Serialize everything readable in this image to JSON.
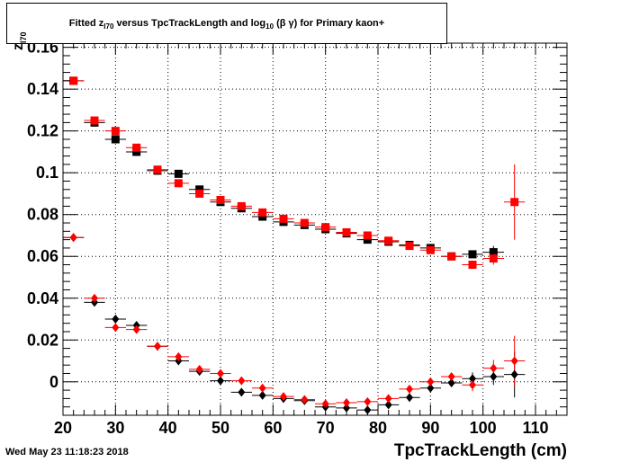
{
  "title": {
    "prefix": "Fitted  z",
    "prefix_sub": "I70",
    "middle": "  versus TpcTrackLength and log",
    "middle_sub": "10",
    "suffix": " (β γ) for Primary kaon+"
  },
  "footer": {
    "date": "Wed May 23 11:18:23 2018"
  },
  "chart_data": {
    "type": "scatter",
    "title": "Fitted z_I70 versus TpcTrackLength and log10 (β γ) for Primary kaon+",
    "xlabel": "TpcTrackLength (cm)",
    "ylabel": "z",
    "ylabel_sub": "I70",
    "xlim": [
      20,
      116
    ],
    "ylim": [
      -0.016,
      0.162
    ],
    "x_ticks": [
      20,
      30,
      40,
      50,
      60,
      70,
      80,
      90,
      100,
      110
    ],
    "y_ticks": [
      0,
      0.02,
      0.04,
      0.06,
      0.08,
      0.1,
      0.12,
      0.14,
      0.16
    ],
    "y_tick_labels": [
      "0",
      "0.02",
      "0.04",
      "0.06",
      "0.08",
      "0.1",
      "0.12",
      "0.14",
      "0.16"
    ],
    "grid": true,
    "x_half_width": 2,
    "series": [
      {
        "marker": "square",
        "color": "#000000",
        "z": 1,
        "points": [
          [
            22,
            0.144,
            0.0008
          ],
          [
            26,
            0.124,
            0.0008
          ],
          [
            30,
            0.116,
            0.0008
          ],
          [
            34,
            0.11,
            0.0008
          ],
          [
            38,
            0.101,
            0.0008
          ],
          [
            42,
            0.0995,
            0.0008
          ],
          [
            46,
            0.092,
            0.0008
          ],
          [
            50,
            0.086,
            0.0008
          ],
          [
            54,
            0.083,
            0.0008
          ],
          [
            58,
            0.079,
            0.0008
          ],
          [
            62,
            0.0765,
            0.0008
          ],
          [
            66,
            0.075,
            0.0008
          ],
          [
            70,
            0.073,
            0.0008
          ],
          [
            74,
            0.071,
            0.0008
          ],
          [
            78,
            0.068,
            0.0008
          ],
          [
            82,
            0.067,
            0.0008
          ],
          [
            86,
            0.0655,
            0.0008
          ],
          [
            90,
            0.064,
            0.001
          ],
          [
            94,
            0.06,
            0.001
          ],
          [
            98,
            0.061,
            0.0015
          ],
          [
            102,
            0.062,
            0.003
          ]
        ]
      },
      {
        "marker": "square",
        "color": "#ff0000",
        "z": 2,
        "points": [
          [
            22,
            0.144,
            0.0008
          ],
          [
            26,
            0.125,
            0.0008
          ],
          [
            30,
            0.12,
            0.0008
          ],
          [
            34,
            0.112,
            0.0008
          ],
          [
            38,
            0.1015,
            0.0008
          ],
          [
            42,
            0.095,
            0.0008
          ],
          [
            46,
            0.09,
            0.0008
          ],
          [
            50,
            0.087,
            0.0008
          ],
          [
            54,
            0.084,
            0.0008
          ],
          [
            58,
            0.081,
            0.0008
          ],
          [
            62,
            0.078,
            0.0008
          ],
          [
            66,
            0.076,
            0.0008
          ],
          [
            70,
            0.074,
            0.0008
          ],
          [
            74,
            0.0715,
            0.0008
          ],
          [
            78,
            0.07,
            0.0008
          ],
          [
            82,
            0.0675,
            0.0008
          ],
          [
            86,
            0.065,
            0.0008
          ],
          [
            90,
            0.063,
            0.0012
          ],
          [
            94,
            0.06,
            0.0012
          ],
          [
            98,
            0.056,
            0.002
          ],
          [
            102,
            0.059,
            0.003
          ],
          [
            106,
            0.086,
            0.018
          ]
        ]
      },
      {
        "marker": "diamond",
        "color": "#000000",
        "z": 1,
        "points": [
          [
            22,
            0.069,
            0.0008
          ],
          [
            26,
            0.038,
            0.0008
          ],
          [
            30,
            0.03,
            0.0008
          ],
          [
            34,
            0.027,
            0.0008
          ],
          [
            38,
            0.017,
            0.0008
          ],
          [
            42,
            0.01,
            0.0008
          ],
          [
            46,
            0.005,
            0.0008
          ],
          [
            50,
            0.0005,
            0.0008
          ],
          [
            54,
            -0.005,
            0.0008
          ],
          [
            58,
            -0.0065,
            0.0008
          ],
          [
            62,
            -0.008,
            0.0008
          ],
          [
            66,
            -0.009,
            0.0008
          ],
          [
            70,
            -0.012,
            0.0008
          ],
          [
            74,
            -0.0125,
            0.0008
          ],
          [
            78,
            -0.0135,
            0.0008
          ],
          [
            82,
            -0.011,
            0.0008
          ],
          [
            86,
            -0.0075,
            0.0008
          ],
          [
            90,
            -0.003,
            0.001
          ],
          [
            94,
            -0.0005,
            0.0015
          ],
          [
            98,
            0.0015,
            0.003
          ],
          [
            102,
            0.0025,
            0.004
          ],
          [
            106,
            0.0035,
            0.011
          ]
        ]
      },
      {
        "marker": "diamond",
        "color": "#ff0000",
        "z": 2,
        "points": [
          [
            22,
            0.069,
            0.0008
          ],
          [
            26,
            0.04,
            0.0008
          ],
          [
            30,
            0.026,
            0.0008
          ],
          [
            34,
            0.025,
            0.0008
          ],
          [
            38,
            0.017,
            0.0008
          ],
          [
            42,
            0.012,
            0.0008
          ],
          [
            46,
            0.006,
            0.0008
          ],
          [
            50,
            0.004,
            0.0008
          ],
          [
            54,
            0.0005,
            0.0008
          ],
          [
            58,
            -0.003,
            0.0008
          ],
          [
            62,
            -0.007,
            0.0008
          ],
          [
            66,
            -0.0085,
            0.0008
          ],
          [
            70,
            -0.0105,
            0.0008
          ],
          [
            74,
            -0.01,
            0.0008
          ],
          [
            78,
            -0.0095,
            0.0008
          ],
          [
            82,
            -0.008,
            0.0008
          ],
          [
            86,
            -0.0035,
            0.0008
          ],
          [
            90,
            0.0,
            0.001
          ],
          [
            94,
            0.0025,
            0.0015
          ],
          [
            98,
            -0.0015,
            0.003
          ],
          [
            102,
            0.0065,
            0.004
          ],
          [
            106,
            0.01,
            0.012
          ]
        ]
      }
    ]
  }
}
